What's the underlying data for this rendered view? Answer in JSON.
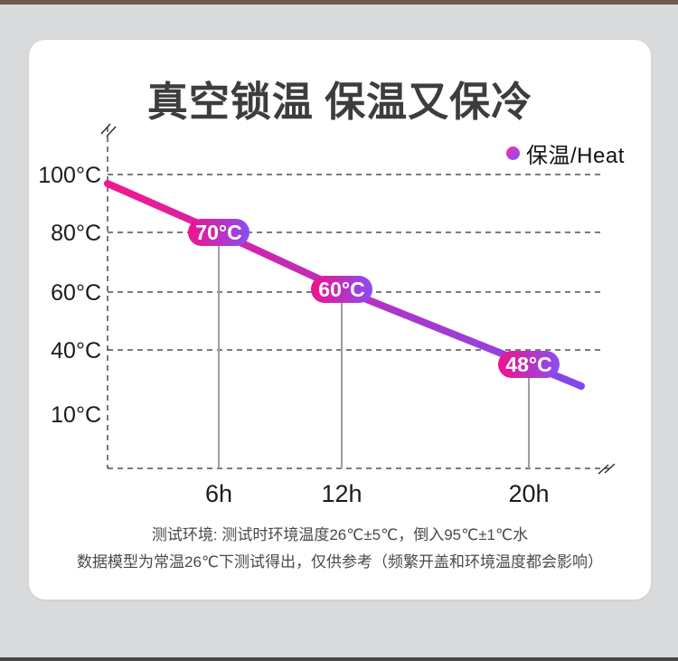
{
  "page": {
    "background": "#d9dadb",
    "top_strip_color": "#6b5953",
    "bottom_strip_color": "#474747",
    "card_background": "#ffffff"
  },
  "chart_data": {
    "type": "line",
    "title": "真空锁温 保温又保冷",
    "legend": {
      "label": "保温/Heat",
      "position": "top-right"
    },
    "x_tick_labels": [
      "6h",
      "12h",
      "20h"
    ],
    "y_tick_labels": [
      "100°C",
      "80°C",
      "60°C",
      "40°C",
      "10°C"
    ],
    "grid": "horizontal-dashed",
    "axis_style": "dashed-with-break-marks",
    "series": [
      {
        "name": "保温/Heat",
        "x_hours": [
          6,
          12,
          20
        ],
        "values": [
          70,
          60,
          48
        ],
        "point_labels": [
          "70°C",
          "60°C",
          "48°C"
        ],
        "start_temp_approx": 97,
        "line_gradient": [
          "#f1188f",
          "#8049ec"
        ],
        "badge_gradient": [
          "#f0128c",
          "#8b4df2"
        ],
        "badge_text_color": "#ffffff"
      }
    ],
    "drop_line_color": "#9e9e9e",
    "axis_color": "#2f2f2f",
    "tick_label_color": "#1b1b1b"
  },
  "footnote": {
    "line1": "测试环境: 测试时环境温度26℃±5℃，倒入95℃±1℃水",
    "line2": "数据模型为常温26℃下测试得出，仅供参考（频繁开盖和环境温度都会影响）"
  }
}
